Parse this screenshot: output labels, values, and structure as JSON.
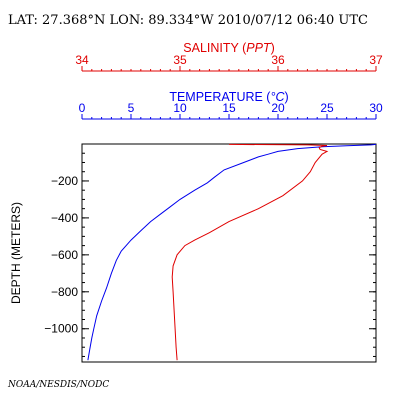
{
  "header": {
    "title": "LAT: 27.368°N LON: 89.334°W 2010/07/12 06:40 UTC"
  },
  "footer": {
    "credit": "NOAA/NESDIS/NODC"
  },
  "chart_data": {
    "type": "line",
    "colors": {
      "salinity": "#e00000",
      "temperature": "#0000ee",
      "frame": "#000000"
    },
    "salinity_axis": {
      "label_prefix": "SALINITY (",
      "label_unit": "PPT",
      "label_suffix": ")",
      "range": [
        34,
        37
      ],
      "ticks": [
        34,
        35,
        36,
        37
      ],
      "minor_step": 0.1
    },
    "temperature_axis": {
      "label_prefix": "TEMPERATURE (",
      "label_unit": "°C",
      "label_suffix": ")",
      "range": [
        0,
        30
      ],
      "ticks": [
        0,
        5,
        10,
        15,
        20,
        25,
        30
      ],
      "minor_step": 1
    },
    "depth_axis": {
      "label": "DEPTH (METERS)",
      "range": [
        0,
        -1180
      ],
      "ticks": [
        -200,
        -400,
        -600,
        -800,
        -1000
      ],
      "tick_labels": [
        "−200",
        "−400",
        "−600",
        "−800",
        "−1000"
      ],
      "minor_step": 50
    },
    "series": [
      {
        "key": "temperature",
        "color": "#0000ee",
        "axis": "temperature",
        "points": [
          [
            30,
            -2
          ],
          [
            29.5,
            -5
          ],
          [
            27,
            -10
          ],
          [
            24.5,
            -15
          ],
          [
            22,
            -25
          ],
          [
            20,
            -40
          ],
          [
            19,
            -55
          ],
          [
            18,
            -70
          ],
          [
            16.5,
            -100
          ],
          [
            14.5,
            -140
          ],
          [
            13.5,
            -180
          ],
          [
            12.8,
            -210
          ],
          [
            11.5,
            -250
          ],
          [
            10,
            -300
          ],
          [
            9,
            -340
          ],
          [
            8,
            -380
          ],
          [
            7,
            -420
          ],
          [
            6,
            -470
          ],
          [
            5,
            -520
          ],
          [
            4,
            -580
          ],
          [
            3.5,
            -630
          ],
          [
            3,
            -700
          ],
          [
            2.5,
            -780
          ],
          [
            2,
            -850
          ],
          [
            1.5,
            -930
          ],
          [
            1.2,
            -1000
          ],
          [
            1,
            -1050
          ],
          [
            0.8,
            -1110
          ],
          [
            0.6,
            -1170
          ]
        ]
      },
      {
        "key": "salinity",
        "color": "#e00000",
        "axis": "salinity",
        "points": [
          [
            35.5,
            -2
          ],
          [
            36.3,
            -5
          ],
          [
            36.5,
            -8
          ],
          [
            36.45,
            -12
          ],
          [
            36.42,
            -20
          ],
          [
            36.43,
            -30
          ],
          [
            36.5,
            -40
          ],
          [
            36.45,
            -55
          ],
          [
            36.38,
            -100
          ],
          [
            36.33,
            -150
          ],
          [
            36.25,
            -200
          ],
          [
            36.05,
            -280
          ],
          [
            35.8,
            -350
          ],
          [
            35.5,
            -420
          ],
          [
            35.3,
            -480
          ],
          [
            35.15,
            -520
          ],
          [
            35.05,
            -550
          ],
          [
            34.97,
            -600
          ],
          [
            34.93,
            -660
          ],
          [
            34.92,
            -720
          ],
          [
            34.93,
            -800
          ],
          [
            34.94,
            -900
          ],
          [
            34.95,
            -1000
          ],
          [
            34.96,
            -1100
          ],
          [
            34.97,
            -1170
          ]
        ]
      }
    ]
  }
}
